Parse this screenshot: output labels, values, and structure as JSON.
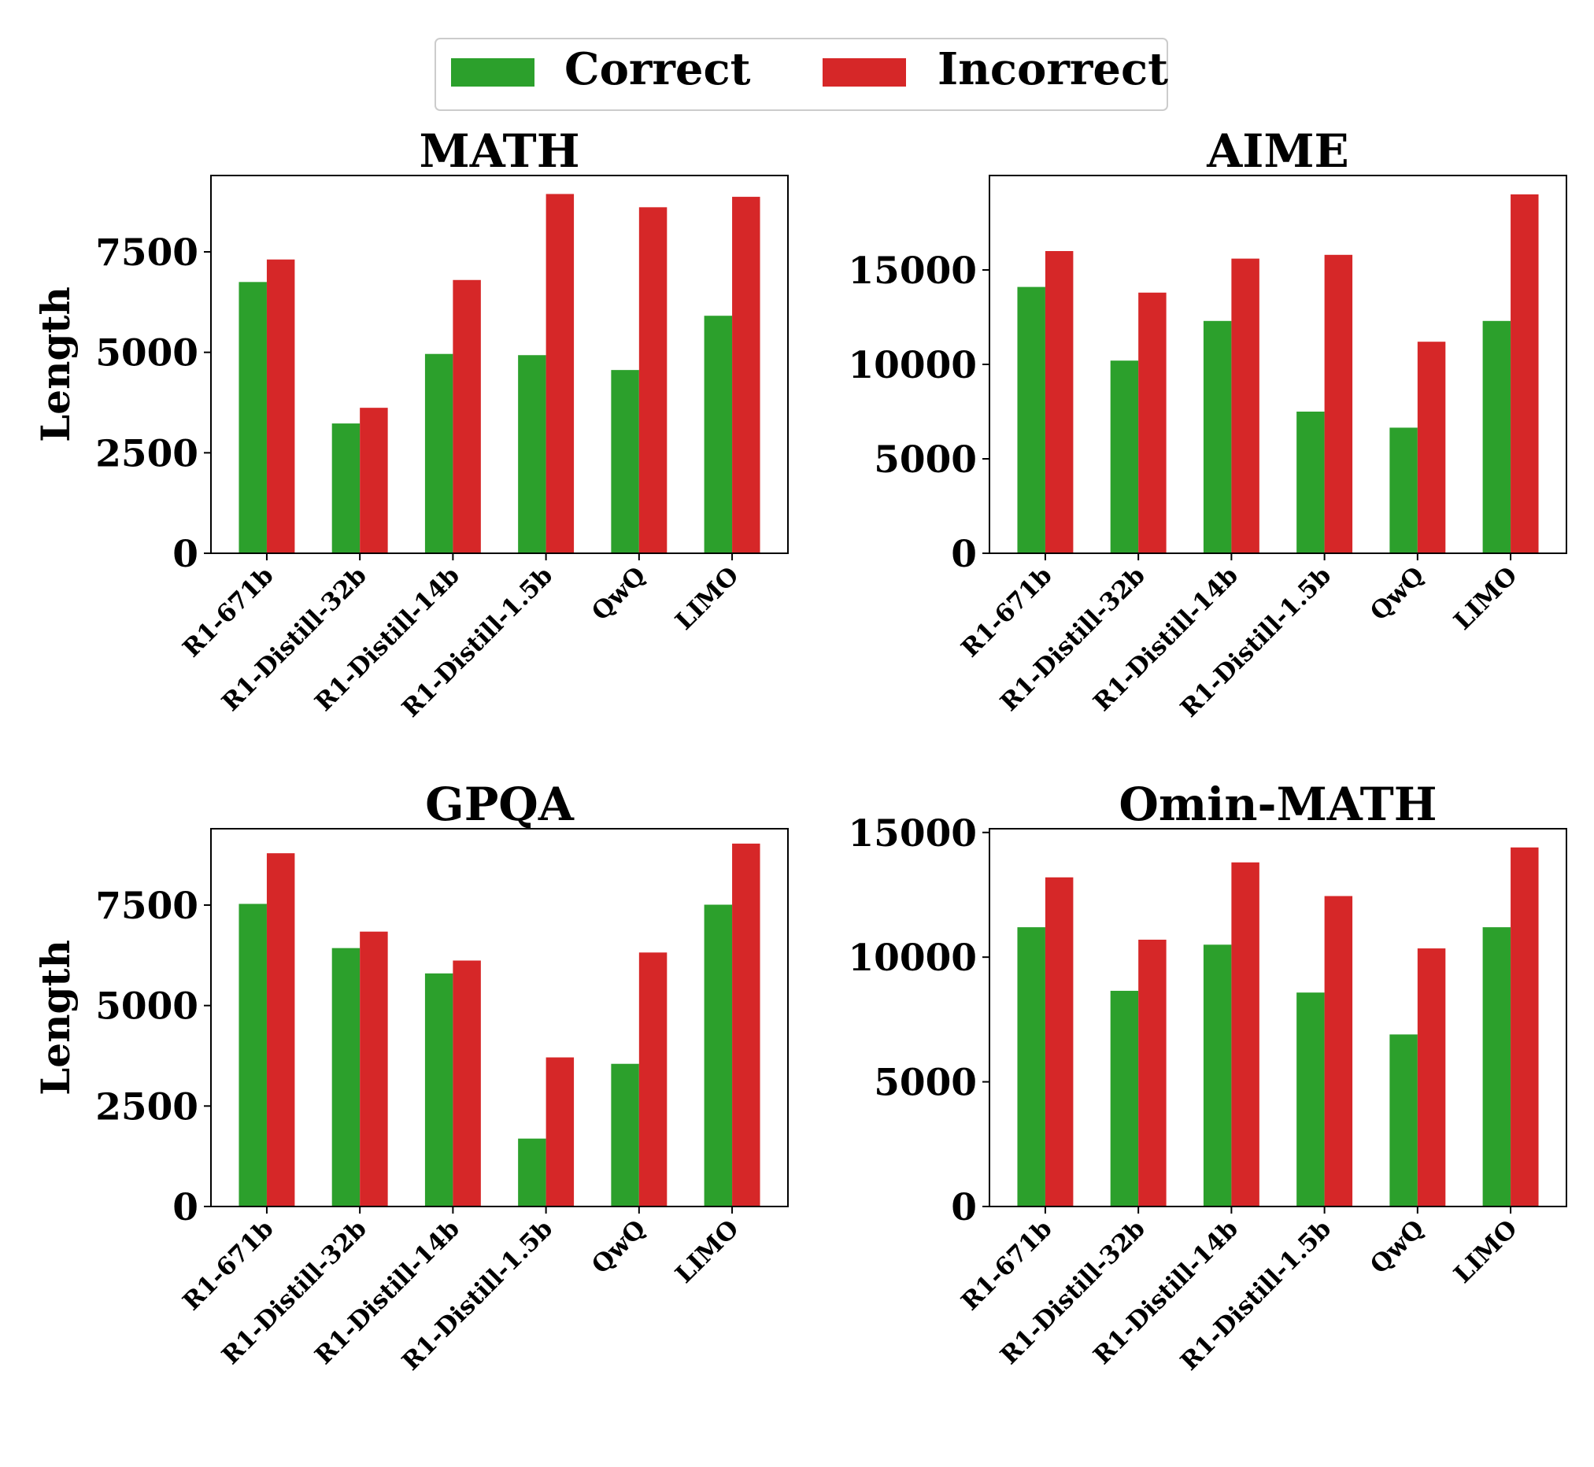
{
  "legend": {
    "entries": [
      {
        "label": "Correct",
        "color": "#2ca02c"
      },
      {
        "label": "Incorrect",
        "color": "#d62728"
      }
    ],
    "placement": "top-center"
  },
  "colors": {
    "correct": "#2ca02c",
    "incorrect": "#d62728",
    "axis": "#000000"
  },
  "chart_data": [
    {
      "type": "bar",
      "title": "MATH",
      "xlabel": "",
      "ylabel": "Length",
      "ylim": [
        0,
        9400
      ],
      "yticks": [
        0,
        2500,
        5000,
        7500
      ],
      "categories": [
        "R1-671b",
        "R1-Distill-32b",
        "R1-Distill-14b",
        "R1-Distill-1.5b",
        "QwQ",
        "LIMO"
      ],
      "series": [
        {
          "name": "Correct",
          "values": [
            6750,
            3230,
            4960,
            4930,
            4560,
            5910
          ]
        },
        {
          "name": "Incorrect",
          "values": [
            7310,
            3620,
            6800,
            8940,
            8610,
            8870
          ]
        }
      ]
    },
    {
      "type": "bar",
      "title": "AIME",
      "xlabel": "",
      "ylabel": "",
      "ylim": [
        0,
        20000
      ],
      "yticks": [
        0,
        5000,
        10000,
        15000
      ],
      "categories": [
        "R1-671b",
        "R1-Distill-32b",
        "R1-Distill-14b",
        "R1-Distill-1.5b",
        "QwQ",
        "LIMO"
      ],
      "series": [
        {
          "name": "Correct",
          "values": [
            14100,
            10200,
            12300,
            7500,
            6650,
            12300
          ]
        },
        {
          "name": "Incorrect",
          "values": [
            16000,
            13800,
            15600,
            15800,
            11200,
            19000
          ]
        }
      ]
    },
    {
      "type": "bar",
      "title": "GPQA",
      "xlabel": "",
      "ylabel": "Length",
      "ylim": [
        0,
        9400
      ],
      "yticks": [
        0,
        2500,
        5000,
        7500
      ],
      "categories": [
        "R1-671b",
        "R1-Distill-32b",
        "R1-Distill-14b",
        "R1-Distill-1.5b",
        "QwQ",
        "LIMO"
      ],
      "series": [
        {
          "name": "Correct",
          "values": [
            7530,
            6430,
            5800,
            1690,
            3550,
            7510
          ]
        },
        {
          "name": "Incorrect",
          "values": [
            8790,
            6840,
            6120,
            3710,
            6320,
            9030
          ]
        }
      ]
    },
    {
      "type": "bar",
      "title": "Omin-MATH",
      "xlabel": "",
      "ylabel": "",
      "ylim": [
        0,
        15150
      ],
      "yticks": [
        0,
        5000,
        10000,
        15000
      ],
      "categories": [
        "R1-671b",
        "R1-Distill-32b",
        "R1-Distill-14b",
        "R1-Distill-1.5b",
        "QwQ",
        "LIMO"
      ],
      "series": [
        {
          "name": "Correct",
          "values": [
            11200,
            8650,
            10500,
            8580,
            6900,
            11200
          ]
        },
        {
          "name": "Incorrect",
          "values": [
            13200,
            10700,
            13800,
            12450,
            10350,
            14400
          ]
        }
      ]
    }
  ]
}
